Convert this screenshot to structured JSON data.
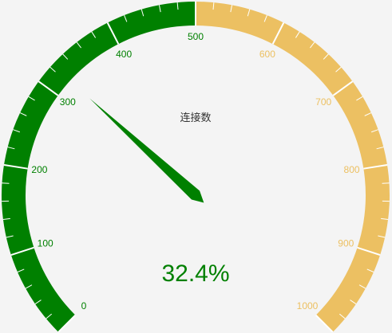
{
  "chart_data": {
    "type": "gauge",
    "title": "连接数",
    "min": 0,
    "max": 1000,
    "value": 324,
    "detail": "32.4%",
    "axis_labels": [
      "0",
      "100",
      "200",
      "300",
      "400",
      "500",
      "600",
      "700",
      "800",
      "900",
      "1000"
    ],
    "bands": [
      {
        "from": 0,
        "to": 500,
        "color": "#008000"
      },
      {
        "from": 500,
        "to": 1000,
        "color": "#ecc062"
      }
    ],
    "pointer_color": "#008000",
    "detail_color": "#008000"
  }
}
